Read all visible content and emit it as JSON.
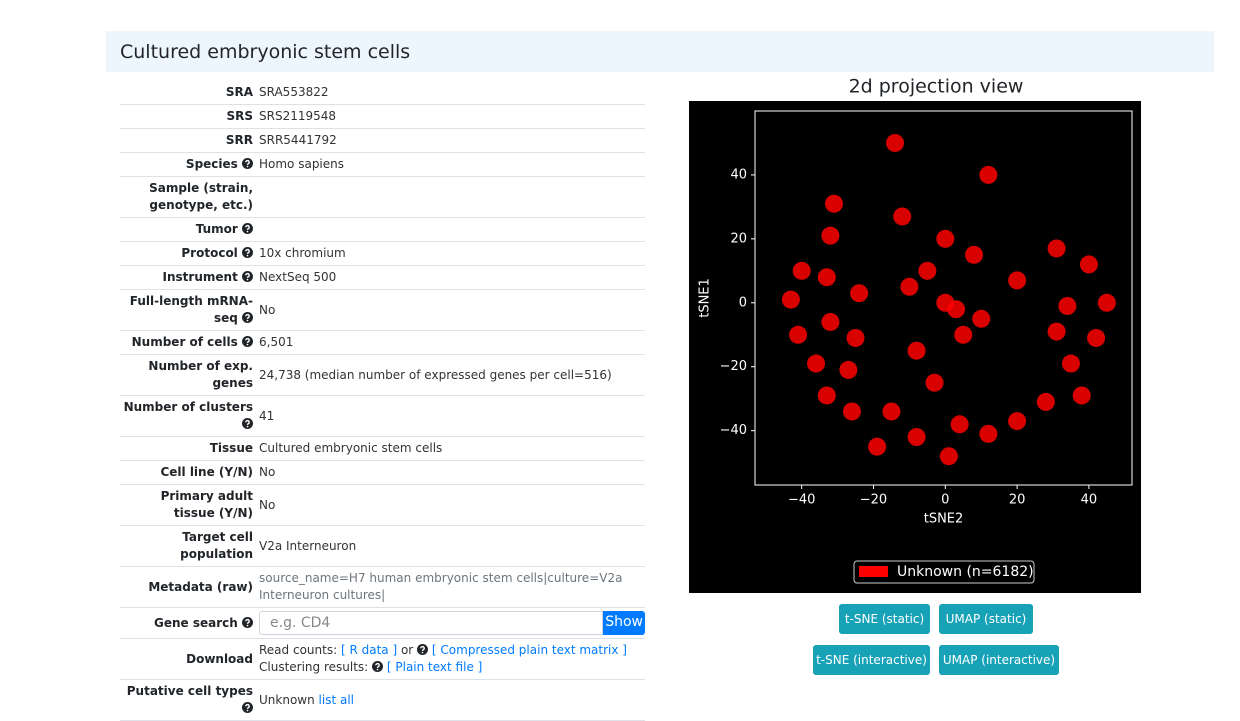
{
  "header": {
    "title": "Cultured embryonic stem cells"
  },
  "details": {
    "rows": [
      {
        "label": "SRA",
        "value": "SRA553822"
      },
      {
        "label": "SRS",
        "value": "SRS2119548"
      },
      {
        "label": "SRR",
        "value": "SRR5441792"
      },
      {
        "label": "Species",
        "help": true,
        "value": "Homo sapiens"
      },
      {
        "label": "Sample (strain, genotype, etc.)",
        "value": null
      },
      {
        "label": "Tumor",
        "help": true,
        "value": null
      },
      {
        "label": "Protocol",
        "help": true,
        "value": "10x chromium"
      },
      {
        "label": "Instrument",
        "help": true,
        "value": "NextSeq 500"
      },
      {
        "label": "Full-length mRNA-seq",
        "help": true,
        "value": "No"
      },
      {
        "label": "Number of cells",
        "help": true,
        "value": "6,501"
      },
      {
        "label": "Number of exp. genes",
        "value": "24,738 (median number of expressed genes per cell=516)"
      },
      {
        "label": "Number of clusters",
        "help": true,
        "value": "41"
      },
      {
        "label": "Tissue",
        "value": "Cultured embryonic stem cells"
      },
      {
        "label": "Cell line (Y/N)",
        "value": "No"
      },
      {
        "label": "Primary adult tissue (Y/N)",
        "value": "No"
      },
      {
        "label": "Target cell population",
        "value": "V2a Interneuron"
      },
      {
        "label": "Metadata (raw)",
        "value": "source_name=H7 human embryonic stem cells|culture=V2a Interneuron cultures|",
        "muted": true
      },
      {
        "label": "Gene search",
        "help": true,
        "placeholder": "e.g. CD4",
        "button": "Show"
      },
      {
        "label": "Download",
        "lines": [
          [
            {
              "text": "Read counts:"
            },
            {
              "link": "[ R data ]"
            },
            {
              "text": "or"
            },
            {
              "icon": true,
              "link": "[ Compressed plain text matrix ]"
            }
          ],
          [
            {
              "text": "Clustering results:"
            },
            {
              "icon": true,
              "link": "[ Plain text file ]"
            }
          ]
        ]
      },
      {
        "label": "Putative cell types",
        "help": true,
        "value": "Unknown",
        "link": "list all"
      }
    ]
  },
  "chart_data": {
    "type": "scatter",
    "title": "2d projection view",
    "x_label": "tSNE2",
    "y_label": "tSNE1",
    "color": "#ff0000",
    "background": "#000000",
    "xlim": [
      -53,
      52
    ],
    "ylim": [
      -57,
      60
    ],
    "xticks": [
      {
        "value": -40,
        "label": "−40"
      },
      {
        "value": -20,
        "label": "−20"
      },
      0,
      20,
      40
    ],
    "yticks": [
      {
        "value": -40,
        "label": "−40"
      },
      {
        "value": -20,
        "label": "−20"
      },
      0,
      20,
      40
    ],
    "series": [
      {
        "name": "Unknown (n=6182)",
        "color": "#ff0000",
        "x": [
          -14,
          -12,
          12,
          -31,
          -32,
          -40,
          -33,
          -43,
          -24,
          -41,
          -32,
          -36,
          -25,
          -27,
          -33,
          -26,
          -19,
          -8,
          -15,
          1,
          4,
          12,
          20,
          28,
          38,
          35,
          42,
          31,
          45,
          34,
          40,
          31,
          20,
          0,
          -5,
          5,
          -8,
          8,
          0,
          -3,
          10,
          -10,
          3
        ],
        "y": [
          50,
          27,
          40,
          31,
          21,
          10,
          8,
          1,
          3,
          -10,
          -6,
          -19,
          -11,
          -21,
          -29,
          -34,
          -45,
          -42,
          -34,
          -48,
          -38,
          -41,
          -37,
          -31,
          -29,
          -19,
          -11,
          -9,
          0,
          -1,
          12,
          17,
          7,
          0,
          10,
          -10,
          -15,
          15,
          20,
          -25,
          -5,
          5,
          -2
        ]
      }
    ],
    "legend": "lower center"
  },
  "buttons": [
    "t-SNE (static)",
    "UMAP (static)",
    "t-SNE (interactive)",
    "UMAP (interactive)"
  ]
}
